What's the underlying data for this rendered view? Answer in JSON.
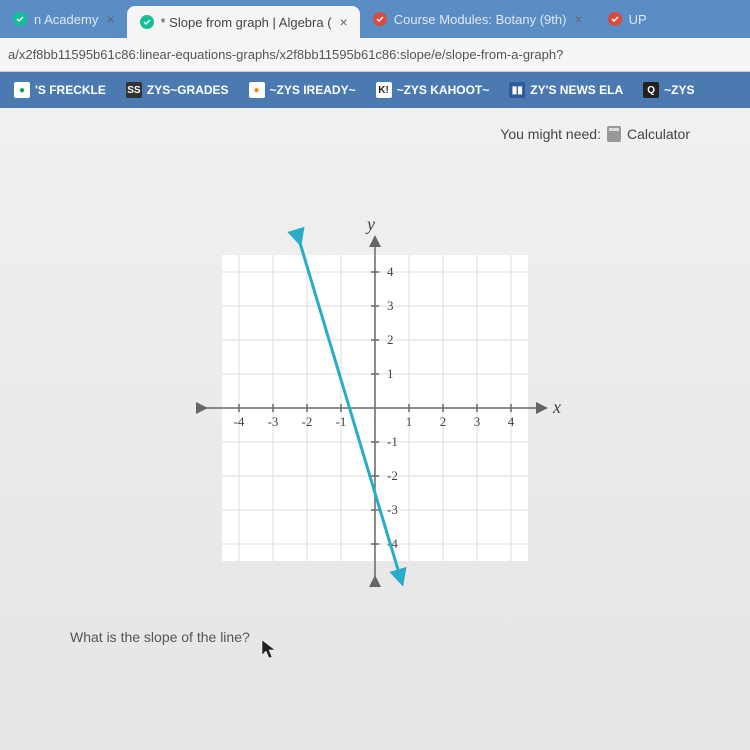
{
  "tabs": [
    {
      "label": "n Academy",
      "active": false,
      "icon_color": "#14bf96",
      "close": true
    },
    {
      "label": "* Slope from graph | Algebra (",
      "active": true,
      "icon_color": "#14bf96",
      "close": true
    },
    {
      "label": "Course Modules: Botany (9th)",
      "active": false,
      "icon_color": "#d94b3f",
      "close": true
    },
    {
      "label": "UP",
      "active": false,
      "icon_color": "#d94b3f",
      "close": false
    }
  ],
  "url": "a/x2f8bb11595b61c86:linear-equations-graphs/x2f8bb11595b61c86:slope/e/slope-from-a-graph?",
  "bookmarks": [
    {
      "label": "'S FRECKLE",
      "icon_bg": "#fff",
      "icon_fg": "#0a5"
    },
    {
      "label": "ZYS~GRADES",
      "icon_bg": "#333",
      "icon_fg": "#fff",
      "icon_txt": "SS"
    },
    {
      "label": "~ZYS IREADY~",
      "icon_bg": "#fff",
      "icon_fg": "#f80"
    },
    {
      "label": "~ZYS KAHOOT~",
      "icon_bg": "#fff",
      "icon_fg": "#321",
      "icon_txt": "K!"
    },
    {
      "label": "ZY'S NEWS ELA",
      "icon_bg": "#2e5b9c",
      "icon_fg": "#fff",
      "icon_txt": "▮▮"
    },
    {
      "label": "~ZYS",
      "icon_bg": "#222",
      "icon_fg": "#fff",
      "icon_txt": "Q"
    }
  ],
  "hint_label": "You might need:",
  "hint_tool": "Calculator",
  "question": "What is the slope of the line?",
  "graph": {
    "type": "line",
    "x_axis_label": "x",
    "y_axis_label": "y",
    "xlim": [
      -5,
      5
    ],
    "ylim": [
      -5,
      5
    ],
    "xticks": [
      -4,
      -3,
      -2,
      -1,
      1,
      2,
      3,
      4
    ],
    "yticks": [
      -4,
      -3,
      -2,
      -1,
      1,
      2,
      3,
      4
    ],
    "tick_labels_x": [
      "-4",
      "-3",
      "-2",
      "-1",
      "1",
      "2",
      "3",
      "4"
    ],
    "tick_labels_y": [
      "-4",
      "-3",
      "-2",
      "-1",
      "1",
      "2",
      "3",
      "4"
    ],
    "grid_color": "#dddddd",
    "axis_color": "#666666",
    "background_color": "#ffffff",
    "tick_fontsize": 13,
    "axis_label_fontsize": 18,
    "line": {
      "points": [
        [
          -2.25,
          5
        ],
        [
          0.75,
          -5
        ]
      ],
      "color": "#29abca",
      "width": 3
    }
  }
}
